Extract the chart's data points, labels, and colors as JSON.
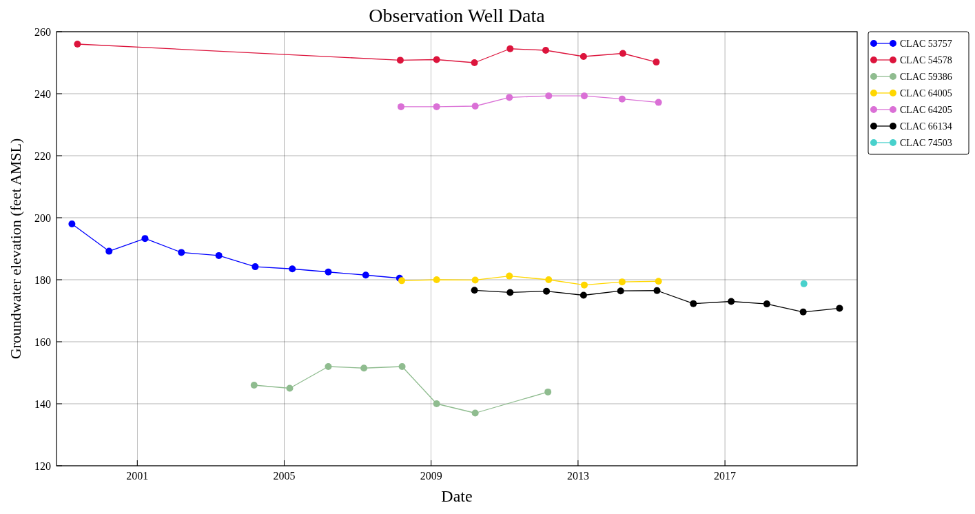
{
  "chart_data": {
    "type": "line",
    "title": "Observation Well Data",
    "xlabel": "Date",
    "ylabel": "Groundwater elevation (feet AMSL)",
    "xlim": [
      1998.8,
      2020.6
    ],
    "xticks": [
      2001,
      2005,
      2009,
      2013,
      2017
    ],
    "ylim": [
      120,
      260
    ],
    "yticks": [
      120,
      140,
      160,
      180,
      200,
      220,
      240,
      260
    ],
    "grid": true,
    "legend": "right",
    "marker": "circle",
    "series": [
      {
        "name": "CLAC 53757",
        "color": "#0000ff",
        "x": [
          1999.22,
          2000.23,
          2001.21,
          2002.2,
          2003.22,
          2004.21,
          2005.22,
          2006.2,
          2007.22,
          2008.14
        ],
        "values": [
          198,
          189.2,
          193.3,
          188.8,
          187.8,
          184.2,
          183.5,
          182.5,
          181.5,
          180.5
        ]
      },
      {
        "name": "CLAC 54578",
        "color": "#dc143c",
        "x": [
          1999.37,
          2008.16,
          2009.15,
          2010.18,
          2011.15,
          2012.12,
          2013.15,
          2014.22,
          2015.13
        ],
        "values": [
          256,
          250.8,
          251,
          250,
          254.5,
          254,
          252,
          253,
          250.2
        ]
      },
      {
        "name": "CLAC 59386",
        "color": "#8fbc8f",
        "x": [
          2004.18,
          2005.15,
          2006.2,
          2007.17,
          2008.21,
          2009.15,
          2010.2,
          2012.18
        ],
        "values": [
          146,
          145,
          152,
          151.5,
          152,
          140,
          137,
          143.8
        ]
      },
      {
        "name": "CLAC 64005",
        "color": "#ffd700",
        "x": [
          2008.2,
          2009.15,
          2010.2,
          2011.13,
          2012.2,
          2013.17,
          2014.2,
          2015.19
        ],
        "values": [
          179.7,
          180,
          179.9,
          181.2,
          180,
          178.3,
          179.3,
          179.5
        ]
      },
      {
        "name": "CLAC 64205",
        "color": "#da70d6",
        "x": [
          2008.18,
          2009.15,
          2010.2,
          2011.13,
          2012.2,
          2013.17,
          2014.2,
          2015.19
        ],
        "values": [
          235.8,
          235.8,
          236,
          238.8,
          239.3,
          239.3,
          238.3,
          237.2
        ]
      },
      {
        "name": "CLAC 66134",
        "color": "#000000",
        "x": [
          2010.18,
          2011.15,
          2012.14,
          2013.15,
          2014.16,
          2015.15,
          2016.14,
          2017.17,
          2018.14,
          2019.13,
          2020.12
        ],
        "values": [
          176.6,
          175.9,
          176.3,
          175,
          176.4,
          176.5,
          172.3,
          173,
          172.2,
          169.6,
          170.8
        ]
      },
      {
        "name": "CLAC 74503",
        "color": "#48d1cc",
        "x": [
          2019.15
        ],
        "values": [
          178.7
        ]
      }
    ]
  }
}
